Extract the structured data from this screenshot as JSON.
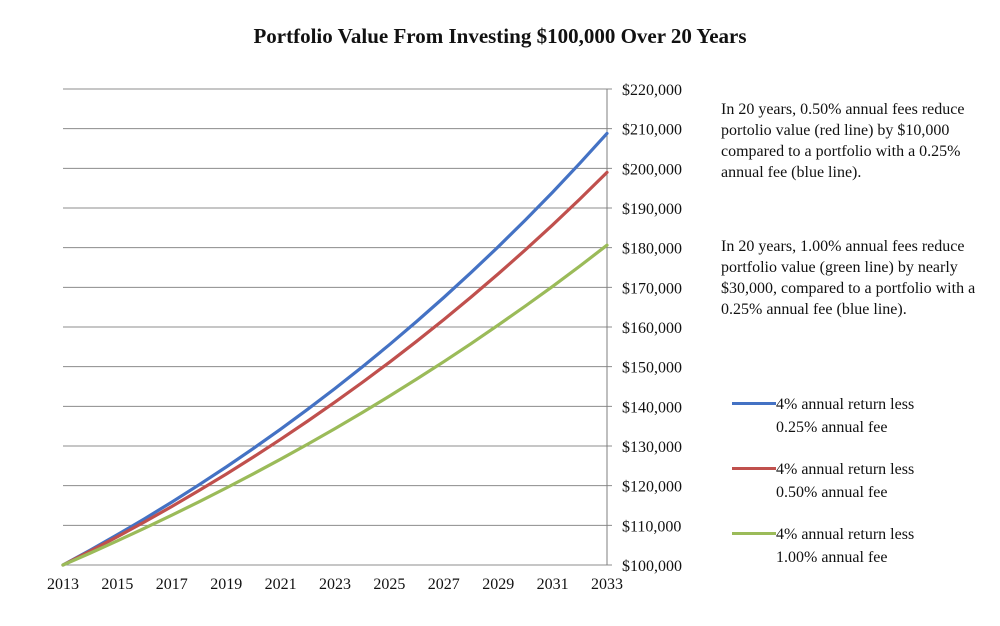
{
  "chart_data": {
    "type": "line",
    "title": "Portfolio Value From Investing $100,000 Over 20 Years",
    "x": [
      2013,
      2014,
      2015,
      2016,
      2017,
      2018,
      2019,
      2020,
      2021,
      2022,
      2023,
      2024,
      2025,
      2026,
      2027,
      2028,
      2029,
      2030,
      2031,
      2032,
      2033
    ],
    "xticks": [
      "2013",
      "2015",
      "2017",
      "2019",
      "2021",
      "2023",
      "2025",
      "2027",
      "2029",
      "2031",
      "2033"
    ],
    "yticks": [
      "$100,000",
      "$110,000",
      "$120,000",
      "$130,000",
      "$140,000",
      "$150,000",
      "$160,000",
      "$170,000",
      "$180,000",
      "$190,000",
      "$200,000",
      "$210,000",
      "$220,000"
    ],
    "ylim": [
      100000,
      220000
    ],
    "xlim": [
      2013,
      2033
    ],
    "grid": true,
    "series": [
      {
        "name": "4% annual return less 0.25% annual fee",
        "line1": "4% annual return less",
        "line2": "0.25% annual fee",
        "rate": 0.0375,
        "color": "#4472c4",
        "values": [
          100000,
          103750,
          107640,
          111677,
          115865,
          120210,
          124718,
          129395,
          134247,
          139282,
          144505,
          149924,
          155546,
          161379,
          167430,
          173709,
          180223,
          186981,
          193993,
          201268,
          208815
        ]
      },
      {
        "name": "4% annual return less 0.50% annual fee",
        "line1": "4% annual return less",
        "line2": "0.50% annual fee",
        "rate": 0.035,
        "color": "#c0504d",
        "values": [
          100000,
          103500,
          107123,
          110872,
          114752,
          118769,
          122926,
          127228,
          131681,
          136290,
          141060,
          145997,
          151107,
          156396,
          161869,
          167535,
          173399,
          179468,
          185749,
          192250,
          198979
        ]
      },
      {
        "name": "4% annual return less 1.00% annual fee",
        "line1": "4% annual return less",
        "line2": "1.00% annual fee",
        "rate": 0.03,
        "color": "#9bbb59",
        "values": [
          100000,
          103000,
          106090,
          109273,
          112551,
          115927,
          119405,
          122987,
          126677,
          130477,
          134392,
          138423,
          142576,
          146853,
          151259,
          155797,
          160471,
          165285,
          170243,
          175351,
          180611
        ]
      }
    ],
    "annotations": [
      "In 20 years,  0.50% annual fees reduce portolio value (red line) by $10,000 compared to a portfolio with a 0.25% annual fee (blue line).",
      "In 20 years, 1.00% annual fees reduce portfolio value (green line) by nearly $30,000, compared to a portfolio with a 0.25% annual fee (blue line)."
    ],
    "legend_position": "right"
  },
  "colors": {
    "grid": "#8c8c8c",
    "axis": "#7f7f7f"
  }
}
